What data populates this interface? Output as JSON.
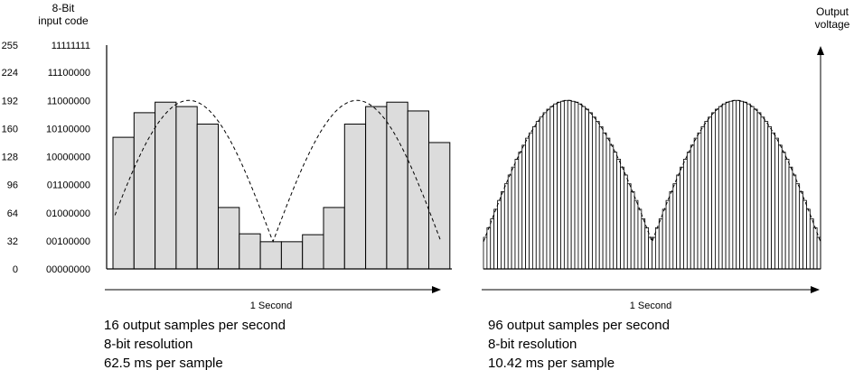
{
  "header": {
    "input_code_label_line1": "8-Bit",
    "input_code_label_line2": "input code",
    "output_label_line1": "Output",
    "output_label_line2": "voltage"
  },
  "y_axis": {
    "decimal_ticks": [
      "255",
      "224",
      "192",
      "160",
      "128",
      "96",
      "64",
      "32",
      "0"
    ],
    "binary_ticks": [
      "11111111",
      "11100000",
      "11000000",
      "10100000",
      "10000000",
      "01100000",
      "01000000",
      "00100000",
      "00000000"
    ],
    "values": [
      255,
      224,
      192,
      160,
      128,
      96,
      64,
      32,
      0
    ]
  },
  "left_panel": {
    "time_label": "1 Second",
    "caption_lines": [
      "16 output samples per second",
      "8-bit resolution",
      "62.5 ms per sample"
    ],
    "samples_per_second": 16,
    "sample_codes": [
      150,
      178,
      190,
      185,
      165,
      70,
      40,
      31,
      31,
      39,
      70,
      165,
      185,
      190,
      180,
      144
    ],
    "bar_fill": "#dcdcdc"
  },
  "right_panel": {
    "time_label": "1 Second",
    "caption_lines": [
      "96 output samples per second",
      "8-bit resolution",
      "10.42 ms per sample"
    ],
    "samples_per_second": 96
  },
  "reference_signal": {
    "shape": "rectified sine (two humps per second)",
    "peak_code": 192,
    "trough_code": 31,
    "style": "dashed"
  }
}
